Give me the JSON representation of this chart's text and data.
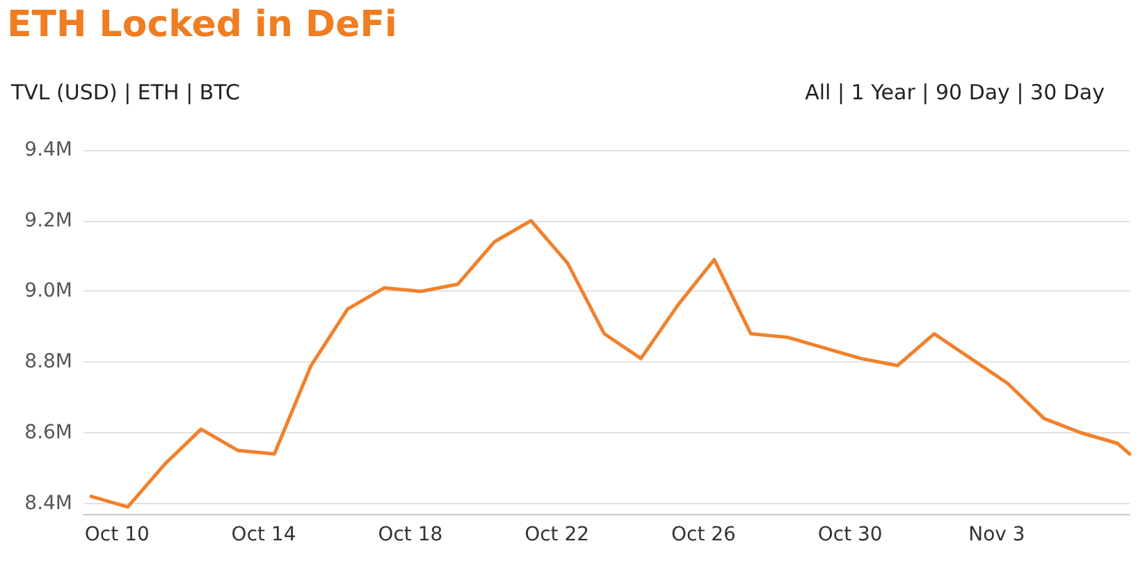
{
  "chart_data": {
    "type": "line",
    "title": "ETH Locked in DeFi",
    "annotations": [
      "TVL (USD) | ETH | BTC",
      "All | 1 Year | 90 Day | 30 Day"
    ],
    "x": [
      "--10-09T07:00",
      "--10-10T07:00",
      "--10-11T07:00",
      "--10-12T07:00",
      "--10-13T07:00",
      "--10-14T07:00",
      "--10-15T07:00",
      "--10-16T07:00",
      "--10-17T07:00",
      "--10-18T07:00",
      "--10-19T07:00",
      "--10-20T07:00",
      "--10-21T07:00",
      "--10-22T07:00",
      "--10-23T07:00",
      "--10-24T07:00",
      "--10-25T07:00",
      "--10-26T07:00",
      "--10-27T07:00",
      "--10-28T07:00",
      "--10-29T07:00",
      "--10-30T07:00",
      "--10-31T07:00",
      "--11-01T07:00",
      "--11-02T07:00",
      "--11-03T07:00",
      "--11-04T07:00",
      "--11-05T07:00",
      "--11-06T07:00",
      "--11-06T15:00"
    ],
    "series": [
      {
        "color": "#f0812c",
        "values": [
          8.42,
          8.39,
          8.51,
          8.61,
          8.55,
          8.54,
          8.79,
          8.95,
          9.01,
          9.0,
          9.02,
          9.14,
          9.2,
          9.08,
          8.88,
          8.81,
          8.96,
          9.09,
          8.88,
          8.87,
          8.84,
          8.81,
          8.79,
          8.88,
          8.81,
          8.74,
          8.64,
          8.6,
          8.57,
          8.54
        ]
      }
    ],
    "xlim": [
      "--10-09T02:00",
      "--11-06T15:00"
    ],
    "xticks": [
      {
        "value": "--10-10",
        "label": "Oct 10"
      },
      {
        "value": "--10-14",
        "label": "Oct 14"
      },
      {
        "value": "--10-18",
        "label": "Oct 18"
      },
      {
        "value": "--10-22",
        "label": "Oct 22"
      },
      {
        "value": "--10-26",
        "label": "Oct 26"
      },
      {
        "value": "--10-30",
        "label": "Oct 30"
      },
      {
        "value": "--11-03",
        "label": "Nov 3"
      }
    ],
    "ylim": [
      8.37,
      9.4
    ],
    "yticks": [
      {
        "value": 8.4,
        "label": "8.4M"
      },
      {
        "value": 8.6,
        "label": "8.6M"
      },
      {
        "value": 8.8,
        "label": "8.8M"
      },
      {
        "value": 9.0,
        "label": "9.0M"
      },
      {
        "value": 9.2,
        "label": "9.2M"
      },
      {
        "value": 9.4,
        "label": "9.4M"
      }
    ],
    "grid": "y",
    "marker": "none",
    "line_style": "solid"
  }
}
